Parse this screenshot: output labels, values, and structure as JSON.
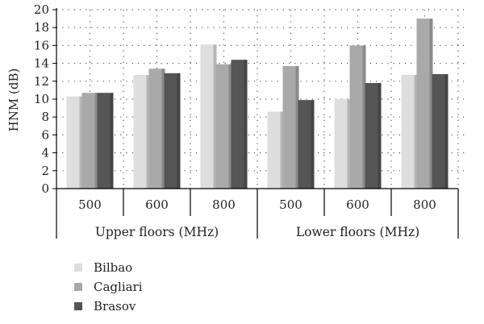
{
  "chart_data": {
    "type": "bar",
    "ylabel": "HNM (dB)",
    "ylim": [
      0,
      20
    ],
    "yticks": [
      "0",
      "2",
      "4",
      "6",
      "8",
      "10",
      "12",
      "14",
      "16",
      "18",
      "20"
    ],
    "grid": true,
    "groups": [
      {
        "label": "Upper floors (MHz)",
        "categories": [
          "500",
          "600",
          "800"
        ]
      },
      {
        "label": "Lower floors (MHz)",
        "categories": [
          "500",
          "600",
          "800"
        ]
      }
    ],
    "categories": [
      "500",
      "600",
      "800",
      "500",
      "600",
      "800"
    ],
    "series": [
      {
        "name": "Bilbao",
        "color": "#dedede",
        "values": [
          10.3,
          12.7,
          16.1,
          8.6,
          10.0,
          12.7
        ]
      },
      {
        "name": "Cagliari",
        "color": "#a9a9a9",
        "values": [
          10.7,
          13.4,
          13.9,
          13.7,
          16.0,
          19.0
        ]
      },
      {
        "name": "Brasov",
        "color": "#555555",
        "values": [
          10.7,
          12.9,
          14.4,
          9.9,
          11.8,
          12.8
        ]
      }
    ],
    "legend_position": "bottom-left"
  }
}
